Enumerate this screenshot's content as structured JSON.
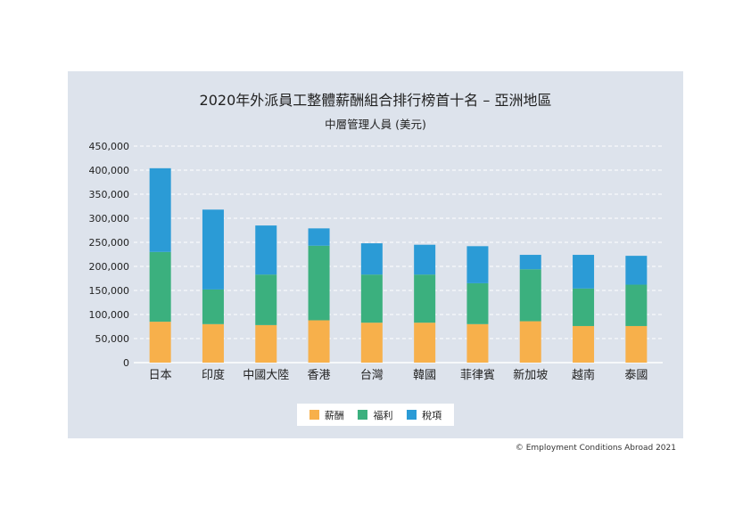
{
  "chart_data": {
    "type": "bar",
    "stacked": true,
    "title": "2020年外派員工整體薪酬組合排行榜首十名 – 亞洲地區",
    "subtitle": "中層管理人員 (美元)",
    "categories": [
      "日本",
      "印度",
      "中國大陸",
      "香港",
      "台灣",
      "韓國",
      "菲律賓",
      "新加坡",
      "越南",
      "泰國"
    ],
    "series": [
      {
        "name": "薪酬",
        "color": "#f7b04b",
        "values": [
          85000,
          80000,
          78000,
          88000,
          83000,
          83000,
          80000,
          86000,
          76000,
          76000
        ]
      },
      {
        "name": "福利",
        "color": "#3bb07e",
        "values": [
          145000,
          72000,
          105000,
          155000,
          100000,
          100000,
          85000,
          108000,
          78000,
          86000
        ]
      },
      {
        "name": "稅項",
        "color": "#2b9bd6",
        "values": [
          174000,
          166000,
          102000,
          36000,
          65000,
          62000,
          77000,
          30000,
          70000,
          60000
        ]
      }
    ],
    "ylim": [
      0,
      450000
    ],
    "yticks": [
      "450,000",
      "400,000",
      "350,000",
      "300,000",
      "250,000",
      "200,000",
      "150,000",
      "100,000",
      "50,000",
      "0"
    ],
    "ytick_values": [
      450000,
      400000,
      350000,
      300000,
      250000,
      200000,
      150000,
      100000,
      50000,
      0
    ],
    "grid": true,
    "legend_position": "bottom"
  },
  "copyright": "© Employment Conditions Abroad 2021"
}
